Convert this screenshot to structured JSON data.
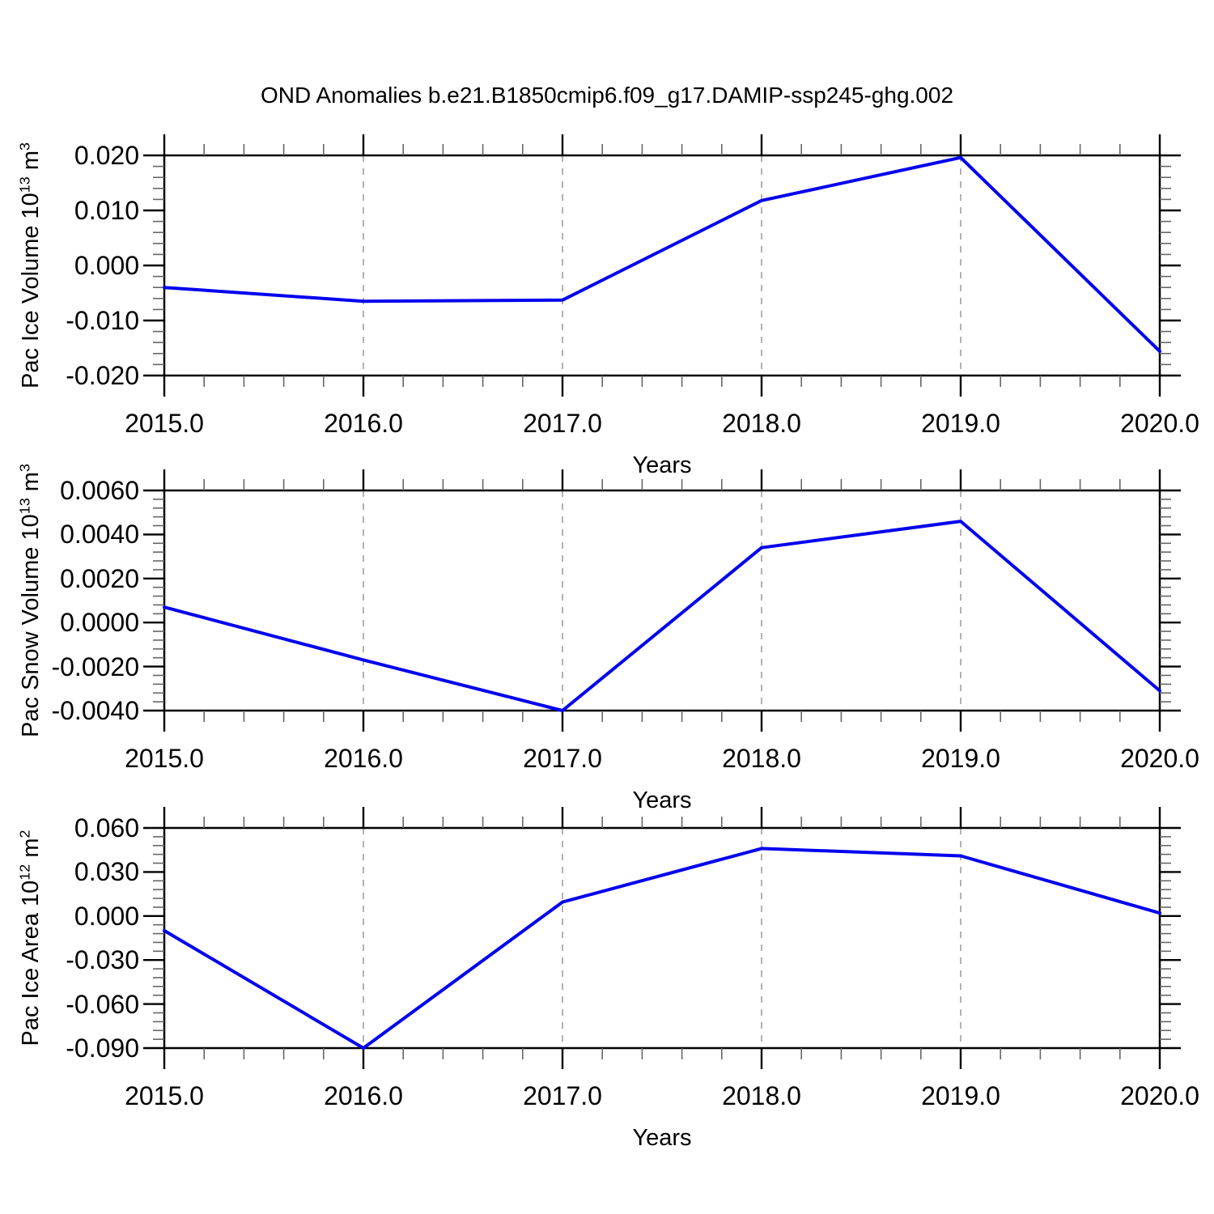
{
  "chart_data": {
    "type": "line",
    "title": "OND Anomalies b.e21.B1850cmip6.f09_g17.DAMIP-ssp245-ghg.002",
    "xlabel": "Years",
    "x": [
      2015,
      2016,
      2017,
      2018,
      2019,
      2020
    ],
    "xtick_labels": [
      "2015.0",
      "2016.0",
      "2017.0",
      "2018.0",
      "2019.0",
      "2020.0"
    ],
    "grid_years": [
      2016,
      2017,
      2018,
      2019
    ],
    "xlim": [
      2015,
      2020
    ],
    "legend": "none",
    "line_color": "#0000ee",
    "grid_color": "#999999",
    "axis_color": "#000000",
    "minor_tick_color": "#666666",
    "panels": [
      {
        "name": "pac-ice-volume",
        "ylabel": "Pac Ice Volume 10^13 m^3",
        "ylabel_parts": {
          "base": "Pac Ice Volume 10",
          "exp": "13",
          "unit": " m",
          "unit_exp": "3"
        },
        "ylim": [
          -0.02,
          0.02
        ],
        "ytick_step": 0.01,
        "ytick_labels": [
          "0.020",
          "0.010",
          "0.000",
          "-0.010",
          "-0.020"
        ],
        "values": [
          -0.004,
          -0.0065,
          -0.0063,
          0.0118,
          0.0196,
          -0.0156
        ]
      },
      {
        "name": "pac-snow-volume",
        "ylabel": "Pac Snow Volume 10^13 m^3",
        "ylabel_parts": {
          "base": "Pac Snow Volume 10",
          "exp": "13",
          "unit": " m",
          "unit_exp": "3"
        },
        "ylim": [
          -0.004,
          0.006
        ],
        "ytick_step": 0.002,
        "ytick_labels": [
          "0.0060",
          "0.0040",
          "0.0020",
          "0.0000",
          "-0.0020",
          "-0.0040"
        ],
        "values": [
          0.0007,
          -0.0017,
          -0.004,
          0.0034,
          0.0046,
          -0.0031
        ]
      },
      {
        "name": "pac-ice-area",
        "ylabel": "Pac Ice Area 10^12 m^2",
        "ylabel_parts": {
          "base": "Pac Ice Area 10",
          "exp": "12",
          "unit": " m",
          "unit_exp": "2"
        },
        "ylim": [
          -0.09,
          0.06
        ],
        "ytick_step": 0.03,
        "ytick_labels": [
          "0.060",
          "0.030",
          "0.000",
          "-0.030",
          "-0.060",
          "-0.090"
        ],
        "values": [
          -0.01,
          -0.09,
          0.0095,
          0.046,
          0.041,
          0.002
        ]
      }
    ]
  }
}
